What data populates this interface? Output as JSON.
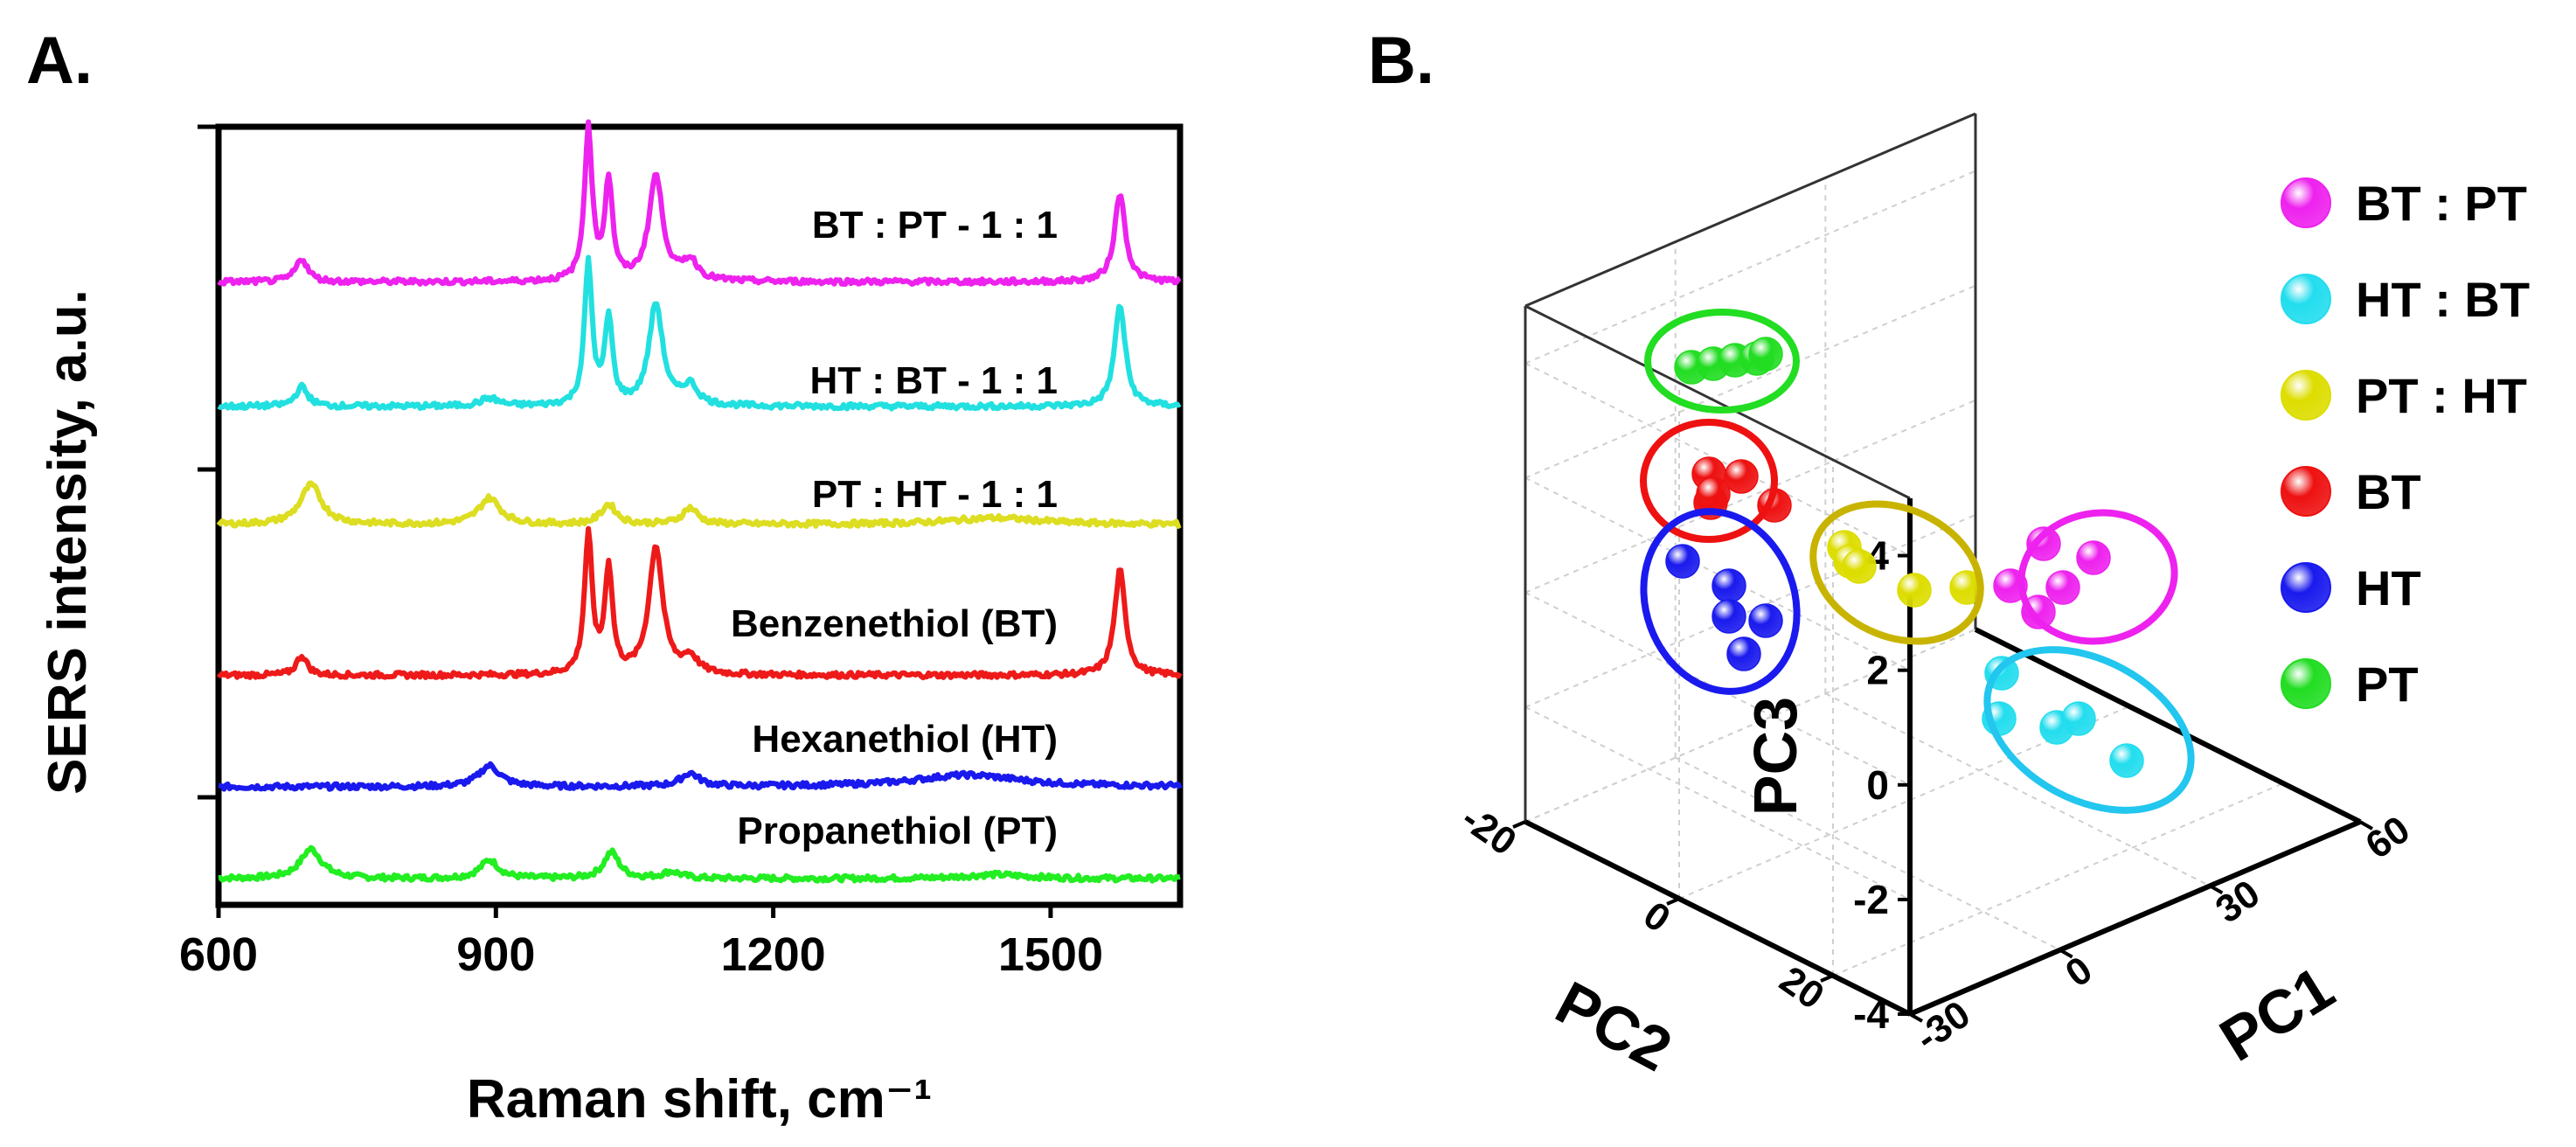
{
  "panels": {
    "a_label": "A.",
    "b_label": "B."
  },
  "chart_data": [
    {
      "type": "line",
      "panel": "A.",
      "title": "",
      "xlabel": "Raman shift, cm⁻¹",
      "ylabel": "SERS intensity, a.u.",
      "xlim": [
        600,
        1640
      ],
      "xticks": [
        600,
        900,
        1200,
        1500
      ],
      "yticks_labeled": false,
      "series": [
        {
          "name": "Propanethiol (PT)",
          "label": "Propanethiol  (PT)",
          "color": "#22ee22",
          "offset": 0.0,
          "peaks": [
            [
              700,
              0.45,
              14
            ],
            [
              893,
              0.28,
              12
            ],
            [
              1025,
              0.4,
              10
            ],
            [
              1090,
              0.1,
              12
            ],
            [
              1440,
              0.06,
              40
            ]
          ]
        },
        {
          "name": "Hexanethiol (HT)",
          "label": "Hexanethiol  (HT)",
          "color": "#1a1aee",
          "offset": 1.4,
          "peaks": [
            [
              893,
              0.32,
              14
            ],
            [
              1110,
              0.2,
              12
            ],
            [
              1410,
              0.18,
              70
            ]
          ]
        },
        {
          "name": "Benzenethiol (BT)",
          "label": "Benzenethiol  (BT)",
          "color": "#ee1a1a",
          "offset": 3.1,
          "peaks": [
            [
              690,
              0.3,
              7
            ],
            [
              1000,
              2.1,
              5
            ],
            [
              1022,
              1.6,
              5
            ],
            [
              1073,
              1.95,
              9
            ],
            [
              1110,
              0.25,
              10
            ],
            [
              1575,
              1.6,
              7
            ]
          ]
        },
        {
          "name": "PT : HT - 1 : 1",
          "label": "PT : HT - 1 : 1",
          "color": "#dddd22",
          "offset": 5.4,
          "peaks": [
            [
              700,
              0.6,
              14
            ],
            [
              893,
              0.4,
              14
            ],
            [
              1022,
              0.3,
              10
            ],
            [
              1110,
              0.25,
              10
            ],
            [
              1440,
              0.1,
              60
            ]
          ]
        },
        {
          "name": "HT : BT - 1 : 1",
          "label": "HT : BT - 1 : 1",
          "color": "#22e0e0",
          "offset": 7.2,
          "peaks": [
            [
              690,
              0.3,
              8
            ],
            [
              893,
              0.12,
              12
            ],
            [
              1000,
              2.15,
              5
            ],
            [
              1022,
              1.3,
              5
            ],
            [
              1073,
              1.55,
              9
            ],
            [
              1110,
              0.3,
              10
            ],
            [
              1575,
              1.55,
              7
            ]
          ]
        },
        {
          "name": "BT : PT - 1 : 1",
          "label": "BT : PT - 1 : 1",
          "color": "#ee22ee",
          "offset": 9.1,
          "peaks": [
            [
              690,
              0.35,
              8
            ],
            [
              1000,
              2.3,
              5
            ],
            [
              1022,
              1.5,
              5
            ],
            [
              1073,
              1.6,
              9
            ],
            [
              1110,
              0.3,
              10
            ],
            [
              1575,
              1.35,
              7
            ]
          ]
        }
      ]
    },
    {
      "type": "scatter",
      "panel": "B.",
      "title": "",
      "xlabel": "PC1",
      "ylabel": "PC2",
      "zlabel": "PC3",
      "xlim": [
        -30,
        60
      ],
      "ylim": [
        -20,
        30
      ],
      "zlim": [
        -4,
        5
      ],
      "xticks": [
        -30,
        0,
        30,
        60
      ],
      "yticks": [
        -20,
        0,
        20
      ],
      "zticks": [
        4,
        2,
        0,
        -2,
        -4
      ],
      "legend_position": "right",
      "series": [
        {
          "name": "BT : PT",
          "color": "#ee22ee",
          "points": [
            [
              45.1,
              -1.3,
              1.6
            ],
            [
              43.9,
              1.7,
              0.1
            ],
            [
              48.0,
              2.1,
              1.3
            ],
            [
              42.0,
              1.0,
              -0.6
            ],
            [
              45.8,
              4.8,
              0.1
            ]
          ]
        },
        {
          "name": "HT : BT",
          "color": "#22ddee",
          "points": [
            [
              50.2,
              3.4,
              -3.8
            ],
            [
              51.2,
              12.0,
              -4.3
            ],
            [
              51.6,
              6.5,
              -4.0
            ],
            [
              45.0,
              13.0,
              -2.2
            ],
            [
              49.2,
              17.5,
              -4.2
            ]
          ]
        },
        {
          "name": "PT : HT",
          "color": "#dddd00",
          "points": [
            [
              23.9,
              4.2,
              2.7
            ],
            [
              24.1,
              5.2,
              2.6
            ],
            [
              24.2,
              7.6,
              2.9
            ],
            [
              27.2,
              6.0,
              1.9
            ],
            [
              27.2,
              11.0,
              1.5
            ]
          ]
        },
        {
          "name": "BT",
          "color": "#ee1111",
          "points": [
            [
              -4.7,
              12.4,
              4.5
            ],
            [
              -1.7,
              14.0,
              4.3
            ],
            [
              -3.7,
              14.7,
              4.9
            ],
            [
              -4.8,
              14.6,
              4.1
            ],
            [
              -5.0,
              17.8,
              4.3
            ]
          ]
        },
        {
          "name": "HT",
          "color": "#1a1aee",
          "points": [
            [
              -10.9,
              6.3,
              0.5
            ],
            [
              -7.1,
              10.8,
              0.5
            ],
            [
              -7.3,
              12.9,
              0.3
            ],
            [
              -6.5,
              13.9,
              -0.3
            ],
            [
              -9.1,
              13.1,
              -0.1
            ]
          ]
        },
        {
          "name": "PT",
          "color": "#22dd22",
          "points": [
            [
              -6.0,
              -4.0,
              3.0
            ],
            [
              -4.0,
              -2.0,
              3.0
            ],
            [
              -2.0,
              0.0,
              3.0
            ],
            [
              1.0,
              0.0,
              3.0
            ],
            [
              2.0,
              2.0,
              3.0
            ]
          ]
        }
      ]
    }
  ]
}
